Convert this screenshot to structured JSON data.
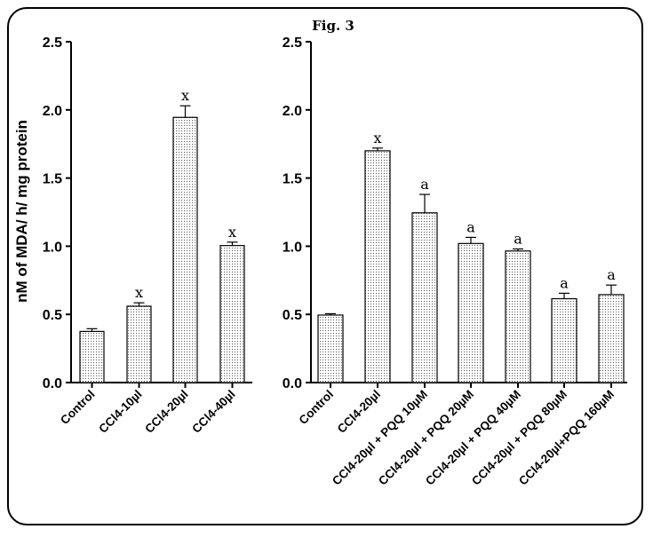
{
  "figure_label": "Fig. 3",
  "chart_data": [
    {
      "type": "bar",
      "ylabel": "nM of MDA/ h/ mg protein",
      "ylim": [
        0,
        2.5
      ],
      "yticks": [
        "0.0",
        "0.5",
        "1.0",
        "1.5",
        "2.0",
        "2.5"
      ],
      "categories": [
        "Control",
        "CCl4-10µl",
        "CCl4-20µl",
        "CCl4-40µl"
      ],
      "values": [
        0.375,
        0.56,
        1.945,
        1.005
      ],
      "errors": [
        0.02,
        0.025,
        0.085,
        0.025
      ],
      "annotations": [
        "",
        "x",
        "x",
        "x"
      ],
      "grid": false
    },
    {
      "type": "bar",
      "ylim": [
        0,
        2.5
      ],
      "yticks": [
        "0.0",
        "0.5",
        "1.0",
        "1.5",
        "2.0",
        "2.5"
      ],
      "categories": [
        "Control",
        "CCl4-20µl",
        "CCl4-20µl + PQQ 10µM",
        "CCl4-20µl + PQQ 20µM",
        "CCl4-20µl + PQQ 40µM",
        "CCl4-20µl + PQQ 80µM",
        "CCl4-20µl+PQQ 160µM"
      ],
      "values": [
        0.495,
        1.7,
        1.245,
        1.02,
        0.965,
        0.615,
        0.645
      ],
      "errors": [
        0.01,
        0.02,
        0.135,
        0.045,
        0.015,
        0.04,
        0.07
      ],
      "annotations": [
        "",
        "x",
        "a",
        "a",
        "a",
        "a",
        "a"
      ],
      "grid": false
    }
  ]
}
